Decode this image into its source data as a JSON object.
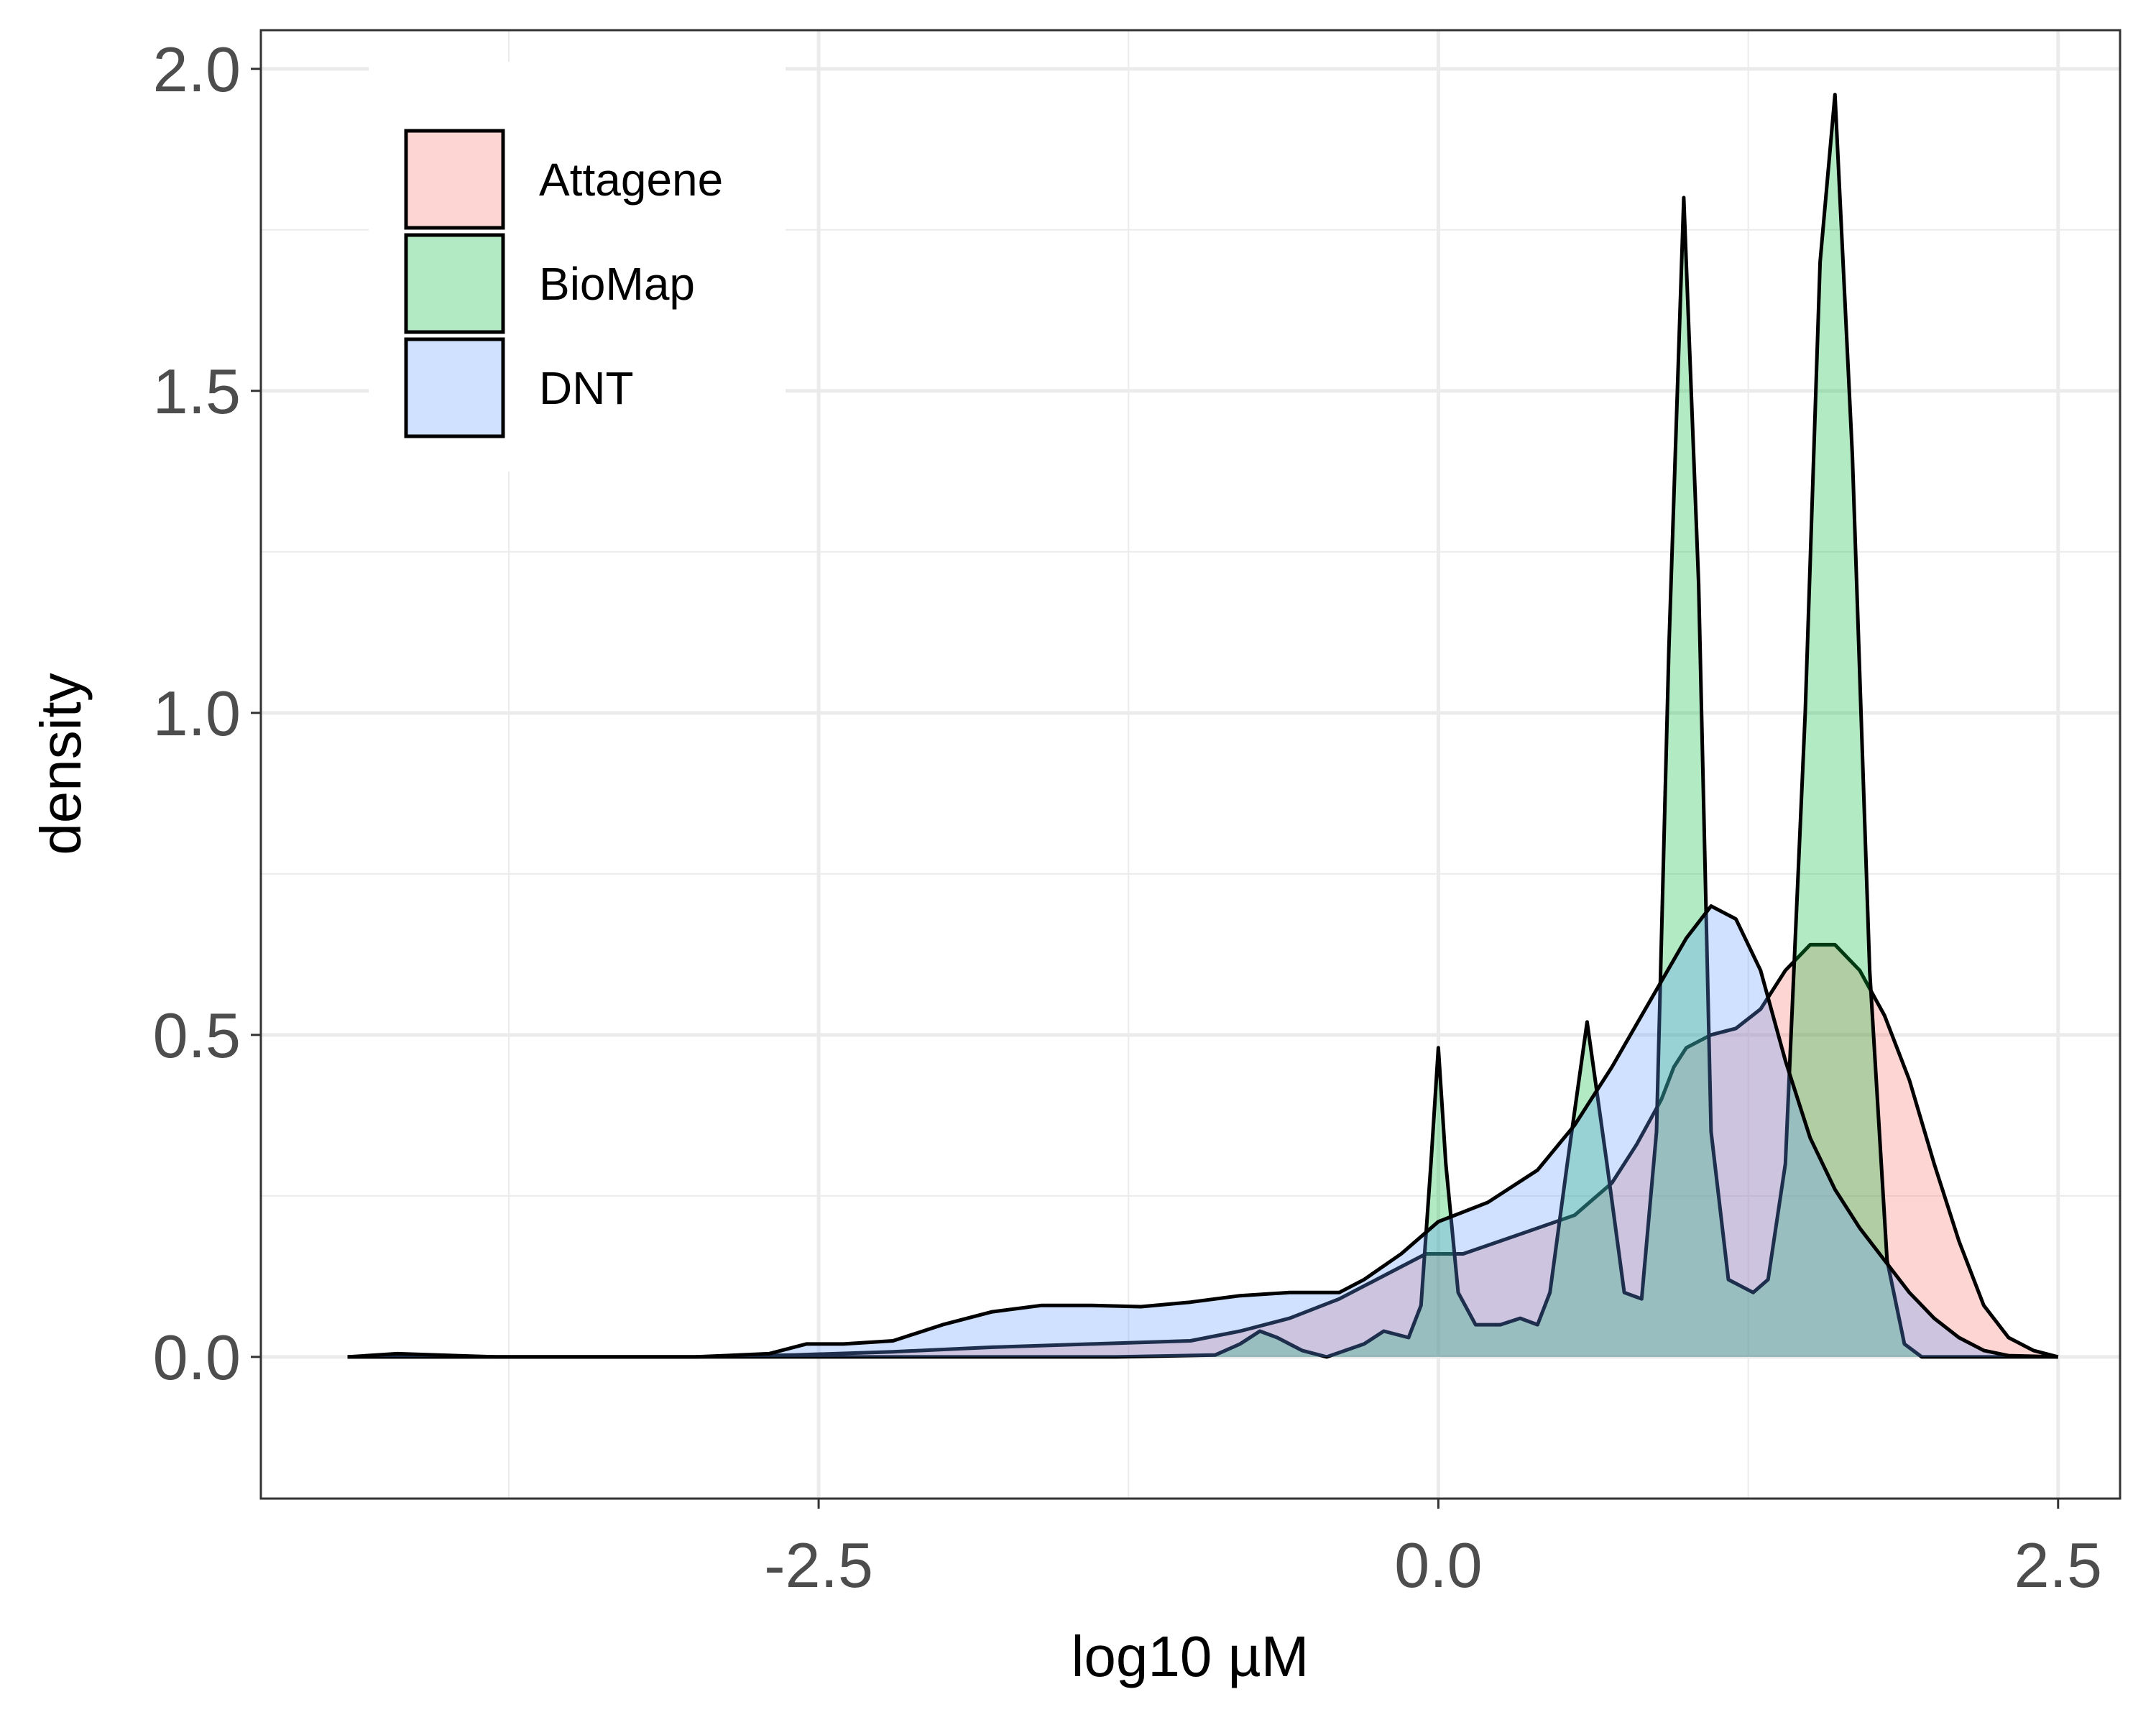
{
  "chart_data": {
    "type": "area",
    "subtype": "density",
    "xlabel": "log10 µM",
    "ylabel": "density",
    "xlim": [
      -4.75,
      2.75
    ],
    "ylim": [
      -0.22,
      2.06
    ],
    "x_ticks": [
      {
        "value": -2.5,
        "label": "-2.5"
      },
      {
        "value": 0.0,
        "label": "0.0"
      },
      {
        "value": 2.5,
        "label": "2.5"
      }
    ],
    "y_ticks": [
      {
        "value": 0.0,
        "label": "0.0"
      },
      {
        "value": 0.5,
        "label": "0.5"
      },
      {
        "value": 1.0,
        "label": "1.0"
      },
      {
        "value": 1.5,
        "label": "1.5"
      },
      {
        "value": 2.0,
        "label": "2.0"
      }
    ],
    "x_minor_grid": [
      -3.75,
      -1.25,
      1.25
    ],
    "y_minor_grid": [
      0.25,
      0.75,
      1.25,
      1.75
    ],
    "grid": true,
    "legend_position": "top-left",
    "fill_opacity": 0.3,
    "series": [
      {
        "name": "Attagene",
        "color": "#F8766D",
        "points": [
          [
            -4.4,
            0.0
          ],
          [
            -3.6,
            0.0
          ],
          [
            -3.0,
            0.0
          ],
          [
            -2.6,
            0.003
          ],
          [
            -2.2,
            0.008
          ],
          [
            -1.8,
            0.015
          ],
          [
            -1.4,
            0.02
          ],
          [
            -1.0,
            0.025
          ],
          [
            -0.8,
            0.04
          ],
          [
            -0.6,
            0.06
          ],
          [
            -0.4,
            0.09
          ],
          [
            -0.2,
            0.13
          ],
          [
            -0.05,
            0.16
          ],
          [
            0.1,
            0.16
          ],
          [
            0.25,
            0.18
          ],
          [
            0.4,
            0.2
          ],
          [
            0.55,
            0.22
          ],
          [
            0.7,
            0.27
          ],
          [
            0.8,
            0.33
          ],
          [
            0.9,
            0.4
          ],
          [
            0.95,
            0.45
          ],
          [
            1.0,
            0.48
          ],
          [
            1.1,
            0.5
          ],
          [
            1.2,
            0.51
          ],
          [
            1.3,
            0.54
          ],
          [
            1.4,
            0.6
          ],
          [
            1.5,
            0.64
          ],
          [
            1.6,
            0.64
          ],
          [
            1.7,
            0.6
          ],
          [
            1.8,
            0.53
          ],
          [
            1.9,
            0.43
          ],
          [
            2.0,
            0.3
          ],
          [
            2.1,
            0.18
          ],
          [
            2.2,
            0.08
          ],
          [
            2.3,
            0.03
          ],
          [
            2.4,
            0.01
          ],
          [
            2.5,
            0.0
          ]
        ]
      },
      {
        "name": "BioMap",
        "color": "#00BA38",
        "points": [
          [
            -4.4,
            0.0
          ],
          [
            -1.3,
            0.0
          ],
          [
            -0.9,
            0.003
          ],
          [
            -0.8,
            0.02
          ],
          [
            -0.72,
            0.04
          ],
          [
            -0.65,
            0.03
          ],
          [
            -0.55,
            0.01
          ],
          [
            -0.45,
            0.0
          ],
          [
            -0.3,
            0.02
          ],
          [
            -0.22,
            0.04
          ],
          [
            -0.12,
            0.03
          ],
          [
            -0.07,
            0.08
          ],
          [
            -0.03,
            0.3
          ],
          [
            0.0,
            0.48
          ],
          [
            0.03,
            0.3
          ],
          [
            0.08,
            0.1
          ],
          [
            0.15,
            0.05
          ],
          [
            0.25,
            0.05
          ],
          [
            0.33,
            0.06
          ],
          [
            0.4,
            0.05
          ],
          [
            0.45,
            0.1
          ],
          [
            0.52,
            0.3
          ],
          [
            0.6,
            0.52
          ],
          [
            0.68,
            0.3
          ],
          [
            0.75,
            0.1
          ],
          [
            0.82,
            0.09
          ],
          [
            0.88,
            0.35
          ],
          [
            0.93,
            1.1
          ],
          [
            0.99,
            1.8
          ],
          [
            1.05,
            1.2
          ],
          [
            1.1,
            0.35
          ],
          [
            1.17,
            0.12
          ],
          [
            1.27,
            0.1
          ],
          [
            1.33,
            0.12
          ],
          [
            1.4,
            0.3
          ],
          [
            1.48,
            1.0
          ],
          [
            1.54,
            1.7
          ],
          [
            1.6,
            1.96
          ],
          [
            1.67,
            1.4
          ],
          [
            1.74,
            0.6
          ],
          [
            1.81,
            0.15
          ],
          [
            1.88,
            0.02
          ],
          [
            1.95,
            0.0
          ],
          [
            2.5,
            0.0
          ]
        ]
      },
      {
        "name": "DNT",
        "color": "#619CFF",
        "points": [
          [
            -4.4,
            0.0
          ],
          [
            -4.2,
            0.005
          ],
          [
            -3.8,
            0.0
          ],
          [
            -3.0,
            0.0
          ],
          [
            -2.7,
            0.005
          ],
          [
            -2.55,
            0.02
          ],
          [
            -2.4,
            0.02
          ],
          [
            -2.2,
            0.025
          ],
          [
            -2.0,
            0.05
          ],
          [
            -1.8,
            0.07
          ],
          [
            -1.6,
            0.08
          ],
          [
            -1.4,
            0.08
          ],
          [
            -1.2,
            0.078
          ],
          [
            -1.0,
            0.085
          ],
          [
            -0.8,
            0.095
          ],
          [
            -0.6,
            0.1
          ],
          [
            -0.4,
            0.1
          ],
          [
            -0.3,
            0.12
          ],
          [
            -0.15,
            0.16
          ],
          [
            0.0,
            0.21
          ],
          [
            0.2,
            0.24
          ],
          [
            0.4,
            0.29
          ],
          [
            0.55,
            0.36
          ],
          [
            0.7,
            0.45
          ],
          [
            0.85,
            0.55
          ],
          [
            1.0,
            0.65
          ],
          [
            1.1,
            0.7
          ],
          [
            1.2,
            0.68
          ],
          [
            1.3,
            0.6
          ],
          [
            1.4,
            0.46
          ],
          [
            1.5,
            0.34
          ],
          [
            1.6,
            0.26
          ],
          [
            1.7,
            0.2
          ],
          [
            1.8,
            0.15
          ],
          [
            1.9,
            0.1
          ],
          [
            2.0,
            0.06
          ],
          [
            2.1,
            0.03
          ],
          [
            2.2,
            0.01
          ],
          [
            2.3,
            0.002
          ],
          [
            2.5,
            0.0
          ]
        ]
      }
    ]
  }
}
